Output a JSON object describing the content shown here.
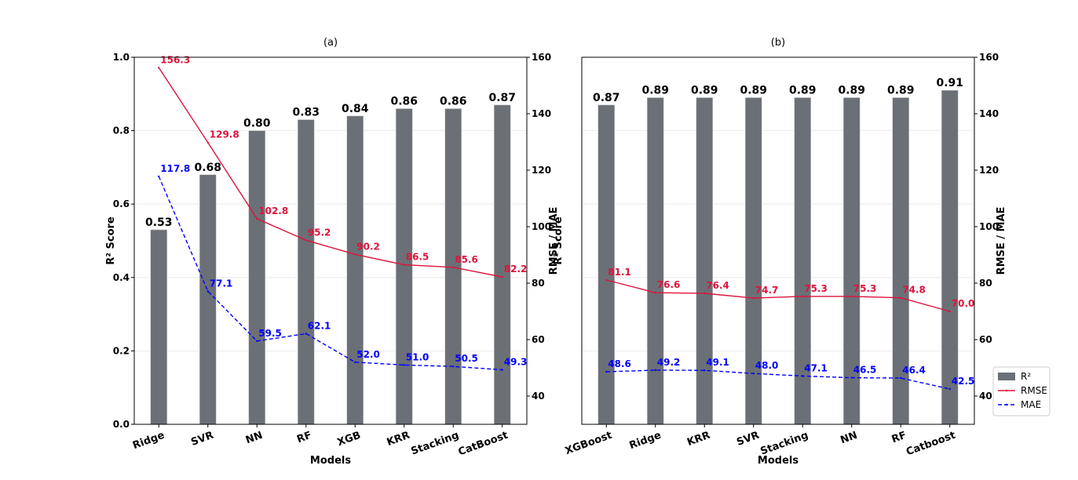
{
  "chart_data": [
    {
      "type": "bar",
      "title": "(a)",
      "xlabel": "Models",
      "ylabel": "R² Score",
      "y2label": "RMSE / MAE",
      "categories": [
        "Ridge",
        "SVR",
        "NN",
        "RF",
        "XGB",
        "KRR",
        "Stacking",
        "CatBoost"
      ],
      "ylim": [
        0,
        1.0
      ],
      "y2lim": [
        30,
        160
      ],
      "yticks": [
        "0.0",
        "0.2",
        "0.4",
        "0.6",
        "0.8",
        "1.0"
      ],
      "y2ticks": [
        "40",
        "60",
        "80",
        "100",
        "120",
        "140",
        "160"
      ],
      "series": [
        {
          "name": "R²",
          "kind": "bar",
          "axis": "left",
          "values": [
            0.53,
            0.68,
            0.8,
            0.83,
            0.84,
            0.86,
            0.86,
            0.87
          ],
          "labels": [
            "0.53",
            "0.68",
            "0.80",
            "0.83",
            "0.84",
            "0.86",
            "0.86",
            "0.87"
          ]
        },
        {
          "name": "RMSE",
          "kind": "line",
          "axis": "right",
          "values": [
            156.3,
            129.8,
            102.8,
            95.2,
            90.2,
            86.5,
            85.6,
            82.2
          ],
          "labels": [
            "156.3",
            "129.8",
            "102.8",
            "95.2",
            "90.2",
            "86.5",
            "85.6",
            "82.2"
          ]
        },
        {
          "name": "MAE",
          "kind": "line",
          "axis": "right",
          "values": [
            117.8,
            77.1,
            59.5,
            62.1,
            52.0,
            51.0,
            50.5,
            49.3
          ],
          "labels": [
            "117.8",
            "77.1",
            "59.5",
            "62.1",
            "52.0",
            "51.0",
            "50.5",
            "49.3"
          ]
        }
      ]
    },
    {
      "type": "bar",
      "title": "(b)",
      "xlabel": "Models",
      "ylabel": "R² Score",
      "y2label": "RMSE / MAE",
      "categories": [
        "XGBoost",
        "Ridge",
        "KRR",
        "SVR",
        "Stacking",
        "NN",
        "RF",
        "Catboost"
      ],
      "ylim": [
        0,
        1.0
      ],
      "y2lim": [
        30,
        160
      ],
      "yticks": [],
      "y2ticks": [
        "40",
        "60",
        "80",
        "100",
        "120",
        "140",
        "160"
      ],
      "series": [
        {
          "name": "R²",
          "kind": "bar",
          "axis": "left",
          "values": [
            0.87,
            0.89,
            0.89,
            0.89,
            0.89,
            0.89,
            0.89,
            0.91
          ],
          "labels": [
            "0.87",
            "0.89",
            "0.89",
            "0.89",
            "0.89",
            "0.89",
            "0.89",
            "0.91"
          ]
        },
        {
          "name": "RMSE",
          "kind": "line",
          "axis": "right",
          "values": [
            81.1,
            76.6,
            76.4,
            74.7,
            75.3,
            75.3,
            74.8,
            70.0
          ],
          "labels": [
            "81.1",
            "76.6",
            "76.4",
            "74.7",
            "75.3",
            "75.3",
            "74.8",
            "70.0"
          ]
        },
        {
          "name": "MAE",
          "kind": "line",
          "axis": "right",
          "values": [
            48.6,
            49.2,
            49.1,
            48.0,
            47.1,
            46.5,
            46.4,
            42.5
          ],
          "labels": [
            "48.6",
            "49.2",
            "49.1",
            "48.0",
            "47.1",
            "46.5",
            "46.4",
            "42.5"
          ]
        }
      ]
    }
  ],
  "legend": {
    "placement": "bottom-right",
    "items": [
      {
        "name": "R²",
        "color": "#6b7077",
        "style": "bar"
      },
      {
        "name": "RMSE",
        "color": "#dc143c",
        "style": "solid"
      },
      {
        "name": "MAE",
        "color": "#0000ff",
        "style": "dashed"
      }
    ]
  },
  "colors": {
    "bar": "#6b7077",
    "rmse": "#dc143c",
    "mae": "#0000ff",
    "grid": "#e6e6e6",
    "text": "#000000"
  }
}
